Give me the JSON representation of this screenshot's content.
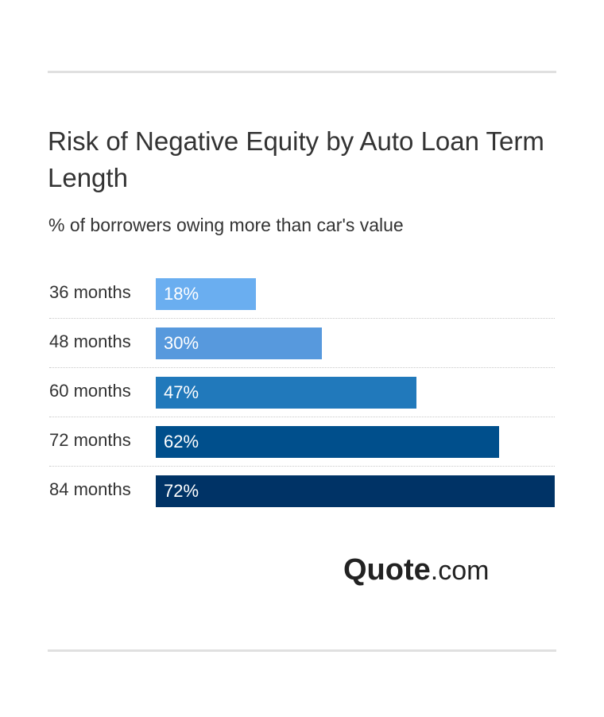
{
  "chart_data": {
    "type": "bar",
    "orientation": "horizontal",
    "title": "Risk of Negative Equity by Auto Loan Term Length",
    "subtitle": "% of borrowers owing more than car's value",
    "categories": [
      "36 months",
      "48 months",
      "60 months",
      "72 months",
      "84 months"
    ],
    "values": [
      18,
      30,
      47,
      62,
      72
    ],
    "value_labels": [
      "18%",
      "30%",
      "47%",
      "62%",
      "72%"
    ],
    "xlim": [
      0,
      72
    ],
    "grid": false,
    "bar_colors": [
      "#6aaef0",
      "#5799dd",
      "#2179bb",
      "#004f8c",
      "#003366"
    ]
  },
  "brand": {
    "name_bold": "Quote",
    "name_suffix": ".com"
  }
}
